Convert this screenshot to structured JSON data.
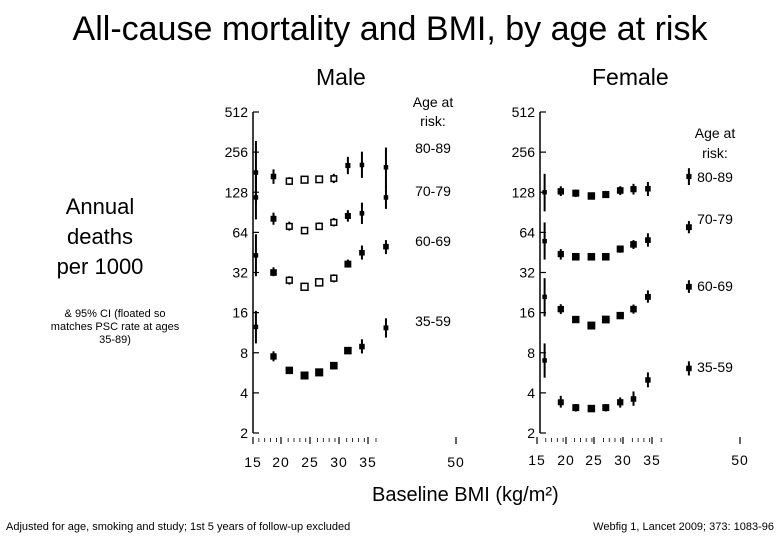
{
  "title": "All-cause mortality and BMI, by age at risk",
  "ylabel_lines": [
    "Annual",
    "deaths",
    "per 1000"
  ],
  "note": "& 95% CI (floated so matches PSC rate at ages 35-89)",
  "xlabel": "Baseline BMI (kg/m²)",
  "footnote_left": "Adjusted for age, smoking and study; 1st 5 years of follow-up excluded",
  "footnote_right": "Webfig 1, Lancet 2009; 373: 1083-96",
  "chart_data": [
    {
      "type": "scatter",
      "title": "Male",
      "ylabel": "Annual deaths per 1000",
      "xlabel": "Baseline BMI (kg/m²)",
      "yscale": "log2",
      "ylim": [
        2,
        512
      ],
      "y_ticks": [
        2,
        4,
        8,
        16,
        32,
        64,
        128,
        256,
        512
      ],
      "xlim": [
        15,
        50
      ],
      "x_tick_labels": [
        "15",
        "20",
        "25",
        "30",
        "35",
        "50"
      ],
      "legend_title": "Age at risk:",
      "error_bars": "95% CI",
      "series": [
        {
          "name": "80-89",
          "points": [
            {
              "x": 15.5,
              "y": 180,
              "lo": 105,
              "hi": 310
            },
            {
              "x": 18.5,
              "y": 168,
              "lo": 148,
              "hi": 190
            },
            {
              "x": 21.2,
              "y": 155,
              "lo": 145,
              "hi": 166
            },
            {
              "x": 23.8,
              "y": 159,
              "lo": 152,
              "hi": 166
            },
            {
              "x": 26.3,
              "y": 160,
              "lo": 152,
              "hi": 168
            },
            {
              "x": 28.8,
              "y": 162,
              "lo": 150,
              "hi": 176
            },
            {
              "x": 31.2,
              "y": 203,
              "lo": 175,
              "hi": 236
            },
            {
              "x": 33.6,
              "y": 205,
              "lo": 164,
              "hi": 258
            },
            {
              "x": 37.7,
              "y": 197,
              "lo": 140,
              "hi": 277
            }
          ]
        },
        {
          "name": "70-79",
          "points": [
            {
              "x": 15.5,
              "y": 117,
              "lo": 80,
              "hi": 170
            },
            {
              "x": 18.5,
              "y": 81,
              "lo": 73,
              "hi": 90
            },
            {
              "x": 21.2,
              "y": 71,
              "lo": 66,
              "hi": 77
            },
            {
              "x": 23.8,
              "y": 66,
              "lo": 62,
              "hi": 70
            },
            {
              "x": 26.3,
              "y": 71,
              "lo": 67,
              "hi": 76
            },
            {
              "x": 28.8,
              "y": 76,
              "lo": 71,
              "hi": 82
            },
            {
              "x": 31.2,
              "y": 85,
              "lo": 77,
              "hi": 94
            },
            {
              "x": 33.6,
              "y": 89,
              "lo": 74,
              "hi": 107
            },
            {
              "x": 37.7,
              "y": 117,
              "lo": 96,
              "hi": 142
            }
          ]
        },
        {
          "name": "60-69",
          "points": [
            {
              "x": 15.5,
              "y": 43,
              "lo": 30,
              "hi": 62
            },
            {
              "x": 18.5,
              "y": 32,
              "lo": 30,
              "hi": 35
            },
            {
              "x": 21.2,
              "y": 28,
              "lo": 26,
              "hi": 30
            },
            {
              "x": 23.8,
              "y": 25,
              "lo": 24,
              "hi": 26
            },
            {
              "x": 26.3,
              "y": 27,
              "lo": 26,
              "hi": 28
            },
            {
              "x": 28.8,
              "y": 29,
              "lo": 27,
              "hi": 31
            },
            {
              "x": 31.2,
              "y": 37,
              "lo": 35,
              "hi": 40
            },
            {
              "x": 33.6,
              "y": 45,
              "lo": 40,
              "hi": 51
            },
            {
              "x": 37.7,
              "y": 50,
              "lo": 44,
              "hi": 56
            }
          ]
        },
        {
          "name": "35-59",
          "points": [
            {
              "x": 15.5,
              "y": 12.5,
              "lo": 9.4,
              "hi": 16.5
            },
            {
              "x": 18.5,
              "y": 7.5,
              "lo": 6.9,
              "hi": 8.2
            },
            {
              "x": 21.2,
              "y": 5.9,
              "lo": 5.6,
              "hi": 6.2
            },
            {
              "x": 23.8,
              "y": 5.4,
              "lo": 5.2,
              "hi": 5.6
            },
            {
              "x": 26.3,
              "y": 5.7,
              "lo": 5.5,
              "hi": 5.9
            },
            {
              "x": 28.8,
              "y": 6.4,
              "lo": 6.1,
              "hi": 6.7
            },
            {
              "x": 31.2,
              "y": 8.3,
              "lo": 7.9,
              "hi": 8.7
            },
            {
              "x": 33.6,
              "y": 8.9,
              "lo": 7.9,
              "hi": 10.1
            },
            {
              "x": 37.7,
              "y": 12.3,
              "lo": 10.4,
              "hi": 14.5
            }
          ]
        }
      ]
    },
    {
      "type": "scatter",
      "title": "Female",
      "ylabel": "Annual deaths per 1000",
      "xlabel": "Baseline BMI (kg/m²)",
      "yscale": "log2",
      "ylim": [
        2,
        512
      ],
      "y_ticks": [
        2,
        4,
        8,
        16,
        32,
        64,
        128,
        256,
        512
      ],
      "xlim": [
        15,
        50
      ],
      "x_tick_labels": [
        "15",
        "20",
        "25",
        "30",
        "35",
        "50"
      ],
      "legend_title": "Age at risk:",
      "error_bars": "95% CI",
      "series": [
        {
          "name": "80-89",
          "points": [
            {
              "x": 15.8,
              "y": 128,
              "lo": 92,
              "hi": 176
            },
            {
              "x": 18.6,
              "y": 130,
              "lo": 120,
              "hi": 142
            },
            {
              "x": 21.2,
              "y": 126,
              "lo": 118,
              "hi": 134
            },
            {
              "x": 23.9,
              "y": 120,
              "lo": 114,
              "hi": 126
            },
            {
              "x": 26.4,
              "y": 123,
              "lo": 116,
              "hi": 131
            },
            {
              "x": 28.9,
              "y": 132,
              "lo": 122,
              "hi": 142
            },
            {
              "x": 31.2,
              "y": 135,
              "lo": 123,
              "hi": 148
            },
            {
              "x": 33.7,
              "y": 136,
              "lo": 120,
              "hi": 153
            },
            {
              "x": 40.8,
              "y": 168,
              "lo": 145,
              "hi": 194
            }
          ]
        },
        {
          "name": "70-79",
          "points": [
            {
              "x": 15.8,
              "y": 55,
              "lo": 40,
              "hi": 76
            },
            {
              "x": 18.6,
              "y": 44,
              "lo": 40,
              "hi": 48
            },
            {
              "x": 21.2,
              "y": 42,
              "lo": 40,
              "hi": 44
            },
            {
              "x": 23.9,
              "y": 42,
              "lo": 40,
              "hi": 44
            },
            {
              "x": 26.4,
              "y": 42,
              "lo": 40,
              "hi": 44
            },
            {
              "x": 28.9,
              "y": 48,
              "lo": 45,
              "hi": 51
            },
            {
              "x": 31.2,
              "y": 52,
              "lo": 48,
              "hi": 56
            },
            {
              "x": 33.7,
              "y": 56,
              "lo": 50,
              "hi": 63
            },
            {
              "x": 40.8,
              "y": 70,
              "lo": 63,
              "hi": 78
            }
          ]
        },
        {
          "name": "60-69",
          "points": [
            {
              "x": 15.8,
              "y": 21,
              "lo": 15,
              "hi": 29
            },
            {
              "x": 18.6,
              "y": 17,
              "lo": 15.6,
              "hi": 18.5
            },
            {
              "x": 21.2,
              "y": 14.2,
              "lo": 13.5,
              "hi": 15
            },
            {
              "x": 23.9,
              "y": 12.8,
              "lo": 12.3,
              "hi": 13.3
            },
            {
              "x": 26.4,
              "y": 14.2,
              "lo": 13.6,
              "hi": 14.8
            },
            {
              "x": 28.9,
              "y": 15.2,
              "lo": 14.4,
              "hi": 16
            },
            {
              "x": 31.2,
              "y": 17,
              "lo": 15.7,
              "hi": 18.4
            },
            {
              "x": 33.7,
              "y": 21,
              "lo": 19,
              "hi": 23.5
            },
            {
              "x": 40.8,
              "y": 25,
              "lo": 22.5,
              "hi": 28
            }
          ]
        },
        {
          "name": "35-59",
          "points": [
            {
              "x": 15.8,
              "y": 7,
              "lo": 5.2,
              "hi": 9.4
            },
            {
              "x": 18.6,
              "y": 3.4,
              "lo": 3.1,
              "hi": 3.8
            },
            {
              "x": 21.2,
              "y": 3.1,
              "lo": 2.9,
              "hi": 3.3
            },
            {
              "x": 23.9,
              "y": 3.05,
              "lo": 2.9,
              "hi": 3.2
            },
            {
              "x": 26.4,
              "y": 3.1,
              "lo": 2.9,
              "hi": 3.3
            },
            {
              "x": 28.9,
              "y": 3.4,
              "lo": 3.1,
              "hi": 3.7
            },
            {
              "x": 31.2,
              "y": 3.6,
              "lo": 3.2,
              "hi": 4.1
            },
            {
              "x": 33.7,
              "y": 5,
              "lo": 4.4,
              "hi": 5.7
            },
            {
              "x": 40.8,
              "y": 6.1,
              "lo": 5.4,
              "hi": 6.9
            }
          ]
        }
      ]
    }
  ]
}
